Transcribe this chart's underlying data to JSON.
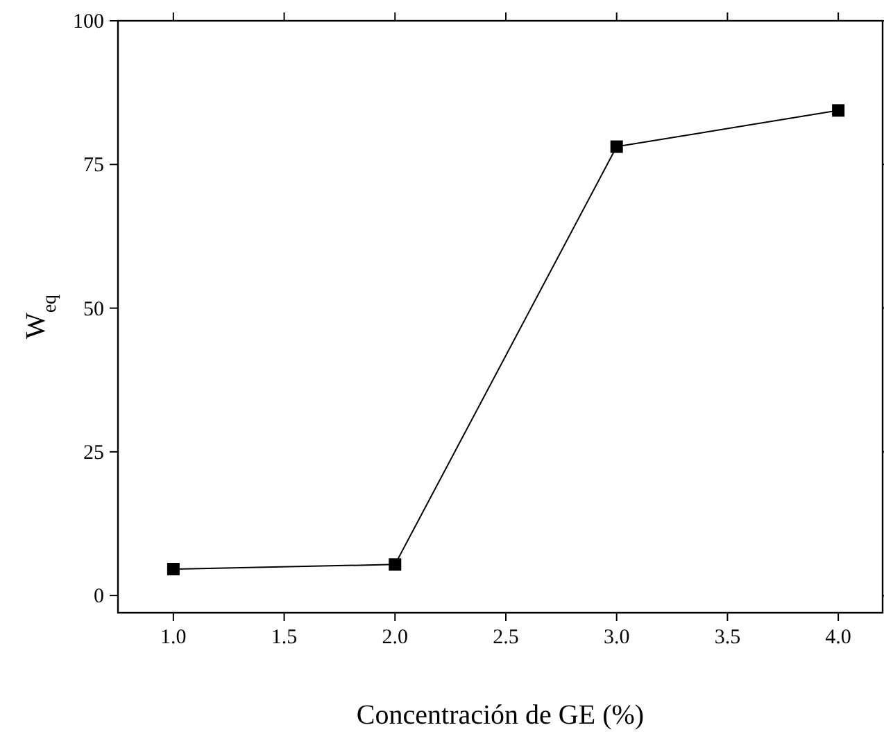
{
  "chart_data": {
    "type": "line",
    "xlabel": "Concentración de GE (%)",
    "ylabel": "W$_{eq}$",
    "x": [
      1,
      2,
      3,
      4
    ],
    "series": [
      {
        "color": "#000000",
        "values": [
          4.6,
          5.4,
          78.1,
          84.4
        ]
      }
    ],
    "xlim": [
      0.75,
      4.2
    ],
    "ylim": [
      -3,
      100
    ],
    "xticks": [
      {
        "value": 1,
        "label": "1.0"
      },
      {
        "value": 1.5,
        "label": "1.5"
      },
      {
        "value": 2,
        "label": "2.0"
      },
      {
        "value": 2.5,
        "label": "2.5"
      },
      {
        "value": 3,
        "label": "3.0"
      },
      {
        "value": 3.5,
        "label": "3.5"
      },
      {
        "value": 4,
        "label": "4.0"
      }
    ],
    "yticks": [
      0,
      25,
      50,
      75,
      100
    ],
    "marker": "square",
    "line_style": "solid"
  }
}
